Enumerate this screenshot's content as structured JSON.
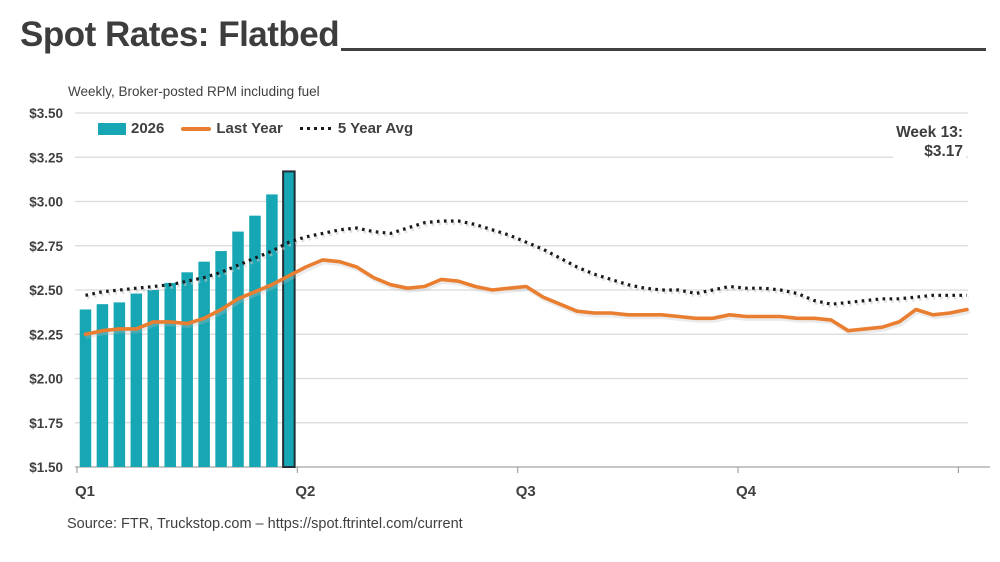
{
  "header": {
    "title": "Spot Rates: Flatbed"
  },
  "subtitle": "Weekly, Broker-posted RPM including fuel",
  "legend": [
    {
      "label": "2026",
      "swatch": "bar",
      "color": "#16a6b4"
    },
    {
      "label": "Last Year",
      "swatch": "line",
      "color": "#e97e30"
    },
    {
      "label": "5 Year Avg",
      "swatch": "dotted",
      "color": "#1a1a1a"
    }
  ],
  "annotation": {
    "line1": "Week 13:",
    "line2": "$3.17"
  },
  "source": "Source: FTR, Truckstop.com – https://spot.ftrintel.com/current",
  "chart_data": {
    "type": "combo-bar-line",
    "title": "Spot Rates: Flatbed",
    "subtitle": "Weekly, Broker-posted RPM including fuel",
    "x_unit": "week of year (52-53 weekly points, grouped by quarter)",
    "ylim": [
      1.5,
      3.5
    ],
    "grid": "horizontal",
    "legend_position": "top-left",
    "y_axis": {
      "values": [
        1.5,
        1.75,
        2.0,
        2.25,
        2.5,
        2.75,
        3.0,
        3.25,
        3.5
      ],
      "labels": [
        "$1.50",
        "$1.75",
        "$2.00",
        "$2.25",
        "$2.50",
        "$2.75",
        "$3.00",
        "$3.25",
        "$3.50"
      ]
    },
    "x_axis": {
      "labels": [
        "Q1",
        "Q2",
        "Q3",
        "Q4"
      ],
      "boundaries": [
        0,
        13,
        26,
        39,
        52
      ]
    },
    "callout": {
      "label": "Week 13:",
      "value": "$3.17",
      "week": 13,
      "bar_value": 3.17
    },
    "series": [
      {
        "name": "2026",
        "type": "bar",
        "color": "#16a6b4",
        "weeks": [
          1,
          2,
          3,
          4,
          5,
          6,
          7,
          8,
          9,
          10,
          11,
          12,
          13
        ],
        "values": [
          2.39,
          2.42,
          2.43,
          2.48,
          2.5,
          2.54,
          2.6,
          2.66,
          2.72,
          2.83,
          2.92,
          3.04,
          3.17
        ],
        "highlight_last_bar": true,
        "highlight_outline_color": "#232f38"
      },
      {
        "name": "Last Year",
        "type": "line",
        "color": "#e97e30",
        "values": [
          2.25,
          2.27,
          2.28,
          2.28,
          2.32,
          2.32,
          2.31,
          2.34,
          2.39,
          2.45,
          2.49,
          2.53,
          2.58,
          2.63,
          2.67,
          2.66,
          2.63,
          2.57,
          2.53,
          2.51,
          2.52,
          2.56,
          2.55,
          2.52,
          2.5,
          2.51,
          2.52,
          2.46,
          2.42,
          2.38,
          2.37,
          2.37,
          2.36,
          2.36,
          2.36,
          2.35,
          2.34,
          2.34,
          2.36,
          2.35,
          2.35,
          2.35,
          2.34,
          2.34,
          2.33,
          2.27,
          2.28,
          2.29,
          2.32,
          2.39,
          2.36,
          2.37,
          2.39
        ]
      },
      {
        "name": "5 Year Avg",
        "type": "dotted-line",
        "color": "#1a1a1a",
        "values": [
          2.47,
          2.49,
          2.5,
          2.51,
          2.52,
          2.53,
          2.55,
          2.57,
          2.6,
          2.64,
          2.68,
          2.72,
          2.77,
          2.8,
          2.82,
          2.84,
          2.85,
          2.83,
          2.82,
          2.85,
          2.88,
          2.89,
          2.89,
          2.87,
          2.84,
          2.81,
          2.77,
          2.73,
          2.68,
          2.63,
          2.59,
          2.56,
          2.53,
          2.51,
          2.5,
          2.5,
          2.48,
          2.5,
          2.52,
          2.51,
          2.51,
          2.5,
          2.48,
          2.44,
          2.42,
          2.43,
          2.44,
          2.45,
          2.45,
          2.46,
          2.47,
          2.47,
          2.47
        ]
      }
    ]
  }
}
